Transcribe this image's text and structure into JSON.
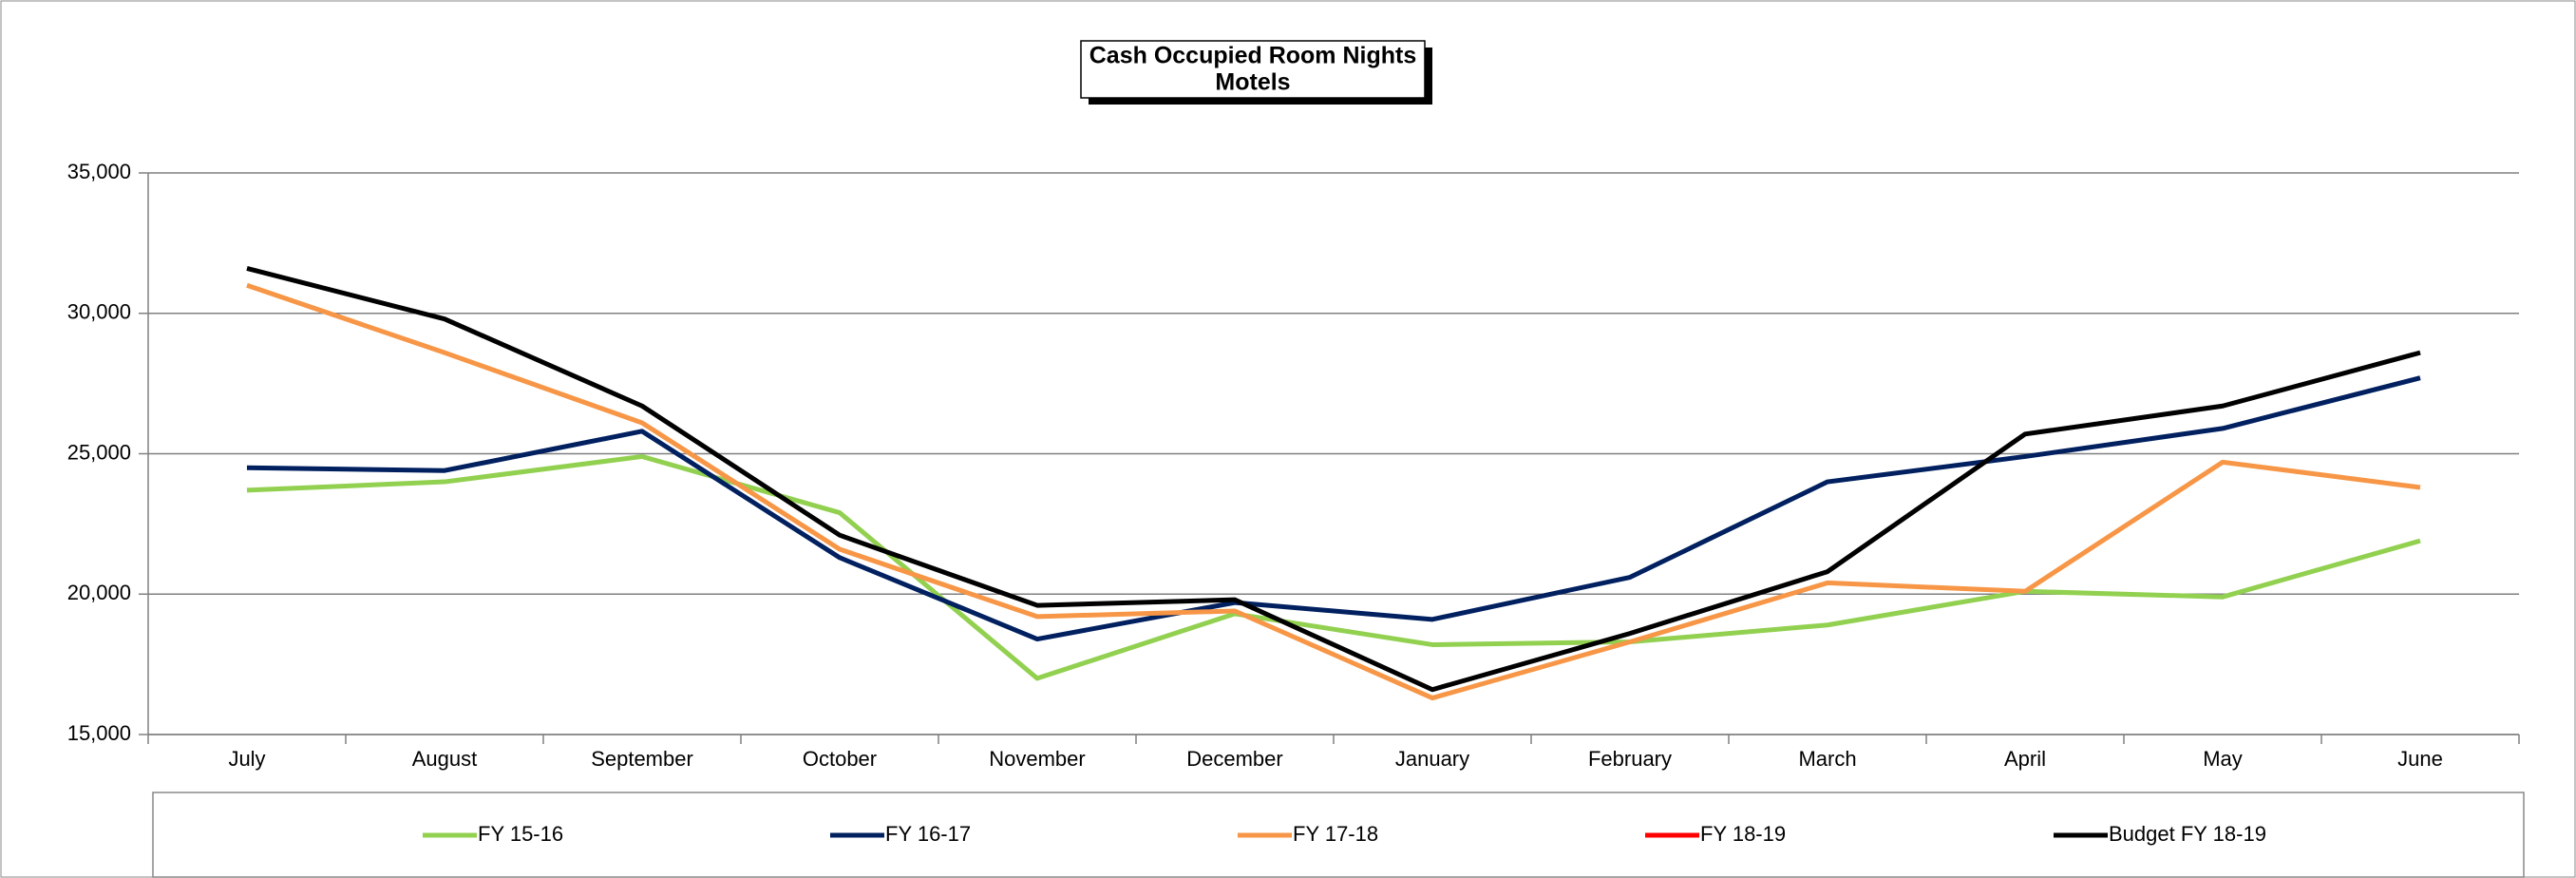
{
  "chart_data": {
    "type": "line",
    "title": "Cash Occupied Room Nights",
    "subtitle": "Motels",
    "categories": [
      "July",
      "August",
      "September",
      "October",
      "November",
      "December",
      "January",
      "February",
      "March",
      "April",
      "May",
      "June"
    ],
    "series": [
      {
        "name": "FY 15-16",
        "color": "#92d050",
        "values": [
          23700,
          24000,
          24900,
          22900,
          17000,
          19300,
          18200,
          18300,
          18900,
          20100,
          19900,
          21900
        ]
      },
      {
        "name": "FY 16-17",
        "color": "#002060",
        "values": [
          24500,
          24400,
          25800,
          21300,
          18400,
          19700,
          19100,
          20600,
          24000,
          24900,
          25900,
          27700
        ]
      },
      {
        "name": "FY 17-18",
        "color": "#f79646",
        "values": [
          31000,
          28600,
          26100,
          21600,
          19200,
          19400,
          16300,
          18300,
          20400,
          20100,
          24700,
          23800
        ]
      },
      {
        "name": "FY 18-19",
        "color": "#ff0000",
        "values": [
          null,
          null,
          null,
          null,
          null,
          null,
          null,
          null,
          null,
          null,
          null,
          null
        ]
      },
      {
        "name": "Budget FY 18-19",
        "color": "#000000",
        "values": [
          31600,
          29800,
          26700,
          22100,
          19600,
          19800,
          16600,
          18600,
          20800,
          25700,
          26700,
          28600
        ]
      }
    ],
    "ylim": [
      15000,
      35000
    ],
    "yticks": [
      {
        "value": 15000,
        "label": "15,000"
      },
      {
        "value": 20000,
        "label": "20,000"
      },
      {
        "value": 25000,
        "label": "25,000"
      },
      {
        "value": 30000,
        "label": "30,000"
      },
      {
        "value": 35000,
        "label": "35,000"
      }
    ],
    "grid": true,
    "legend": "bottom"
  }
}
